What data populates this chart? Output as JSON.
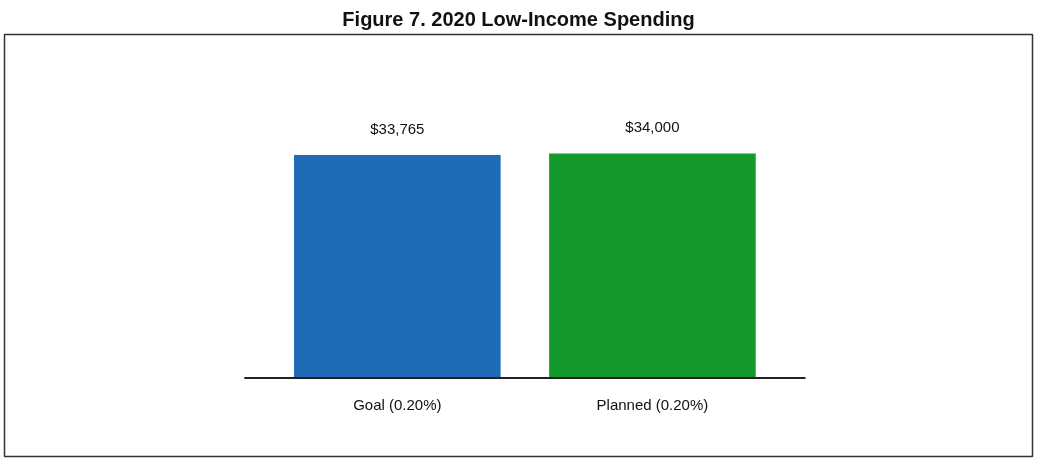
{
  "chart_data": {
    "type": "bar",
    "title": "Figure 7. 2020 Low-Income Spending",
    "categories": [
      "Goal (0.20%)",
      "Planned (0.20%)"
    ],
    "values": [
      33765,
      34000
    ],
    "colors": [
      "#1f6bb5",
      "#149a2c"
    ],
    "value_labels": [
      "$33,765",
      "$34,000"
    ]
  }
}
